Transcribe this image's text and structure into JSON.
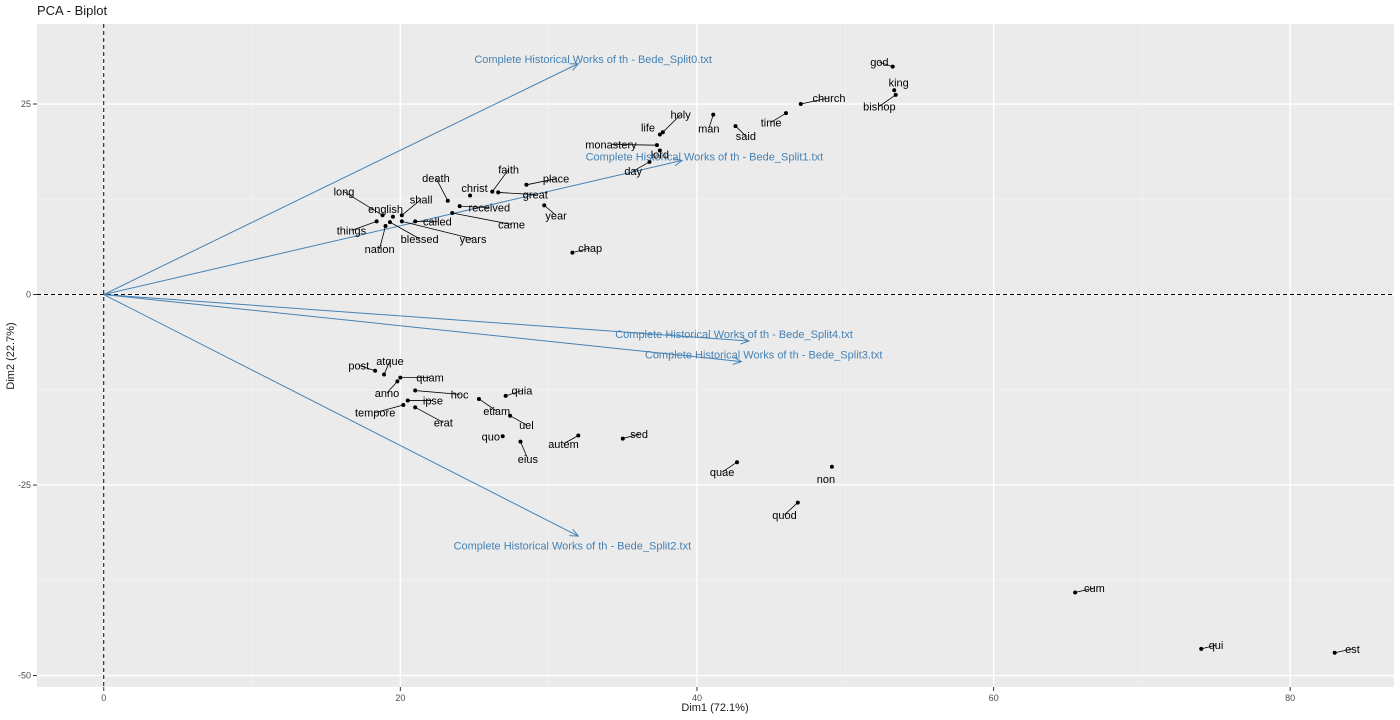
{
  "chart_data": {
    "type": "scatter",
    "subtype": "pca-biplot",
    "title": "PCA - Biplot",
    "xlabel": "Dim1 (72.1%)",
    "ylabel": "Dim2 (22.7%)",
    "xlim": [
      -4.5,
      87
    ],
    "ylim": [
      -51.5,
      35.5
    ],
    "xticks": [
      0,
      20,
      40,
      60,
      80
    ],
    "yticks": [
      -50,
      -25,
      0,
      25
    ],
    "grid": true,
    "reference_lines": {
      "x": 0,
      "y": 0
    },
    "colors": {
      "panel": "#ebebeb",
      "grid_major": "#ffffff",
      "grid_minor": "#f3f3f3",
      "vector": "#4682b4",
      "point": "#000000",
      "refline": "#000000"
    },
    "points": [
      {
        "label": "god",
        "x": 53.2,
        "y": 29.9,
        "lx": 52.3,
        "ly": 30.5
      },
      {
        "label": "king",
        "x": 53.3,
        "y": 26.8,
        "lx": 53.6,
        "ly": 27.8
      },
      {
        "label": "bishop",
        "x": 53.4,
        "y": 26.2,
        "lx": 52.3,
        "ly": 24.7
      },
      {
        "label": "church",
        "x": 47.0,
        "y": 25.0,
        "lx": 48.9,
        "ly": 25.8
      },
      {
        "label": "time",
        "x": 46.0,
        "y": 23.8,
        "lx": 45.0,
        "ly": 22.6
      },
      {
        "label": "man",
        "x": 41.1,
        "y": 23.6,
        "lx": 40.8,
        "ly": 21.8
      },
      {
        "label": "said",
        "x": 42.6,
        "y": 22.1,
        "lx": 43.3,
        "ly": 20.8
      },
      {
        "label": "holy",
        "x": 37.7,
        "y": 21.3,
        "lx": 38.9,
        "ly": 23.6
      },
      {
        "label": "life",
        "x": 37.5,
        "y": 21.0,
        "lx": 36.7,
        "ly": 21.9
      },
      {
        "label": "monastery",
        "x": 37.3,
        "y": 19.6,
        "lx": 34.2,
        "ly": 19.7
      },
      {
        "label": "lord",
        "x": 37.5,
        "y": 18.9,
        "lx": 37.5,
        "ly": 18.4
      },
      {
        "label": "day",
        "x": 36.8,
        "y": 17.4,
        "lx": 35.7,
        "ly": 16.2
      },
      {
        "label": "faith",
        "x": 26.2,
        "y": 13.5,
        "lx": 27.3,
        "ly": 16.4
      },
      {
        "label": "place",
        "x": 28.5,
        "y": 14.4,
        "lx": 30.5,
        "ly": 15.2
      },
      {
        "label": "christ",
        "x": 24.7,
        "y": 13.0,
        "lx": 25.0,
        "ly": 14.0
      },
      {
        "label": "great",
        "x": 26.6,
        "y": 13.4,
        "lx": 29.1,
        "ly": 13.1
      },
      {
        "label": "death",
        "x": 23.2,
        "y": 12.3,
        "lx": 22.4,
        "ly": 15.3
      },
      {
        "label": "year",
        "x": 29.7,
        "y": 11.7,
        "lx": 30.5,
        "ly": 10.4
      },
      {
        "label": "received",
        "x": 24.0,
        "y": 11.6,
        "lx": 26.0,
        "ly": 11.4
      },
      {
        "label": "long",
        "x": 18.8,
        "y": 10.4,
        "lx": 16.2,
        "ly": 13.5
      },
      {
        "label": "english",
        "x": 19.5,
        "y": 10.2,
        "lx": 19.0,
        "ly": 11.2
      },
      {
        "label": "shall",
        "x": 20.1,
        "y": 10.4,
        "lx": 21.4,
        "ly": 12.5
      },
      {
        "label": "called",
        "x": 21.0,
        "y": 9.6,
        "lx": 22.5,
        "ly": 9.6
      },
      {
        "label": "came",
        "x": 23.5,
        "y": 10.7,
        "lx": 27.5,
        "ly": 9.2
      },
      {
        "label": "things",
        "x": 18.4,
        "y": 9.6,
        "lx": 16.7,
        "ly": 8.4
      },
      {
        "label": "blessed",
        "x": 19.3,
        "y": 9.5,
        "lx": 21.3,
        "ly": 7.3
      },
      {
        "label": "years",
        "x": 20.1,
        "y": 9.6,
        "lx": 24.9,
        "ly": 7.3
      },
      {
        "label": "nation",
        "x": 19.0,
        "y": 9.0,
        "lx": 18.6,
        "ly": 6.0
      },
      {
        "label": "chap",
        "x": 31.6,
        "y": 5.5,
        "lx": 32.8,
        "ly": 6.1
      },
      {
        "label": "post",
        "x": 18.3,
        "y": -10.0,
        "lx": 17.2,
        "ly": -9.3
      },
      {
        "label": "atque",
        "x": 18.9,
        "y": -10.5,
        "lx": 19.3,
        "ly": -8.7
      },
      {
        "label": "quam",
        "x": 20.0,
        "y": -10.9,
        "lx": 22.0,
        "ly": -10.9
      },
      {
        "label": "anno",
        "x": 19.8,
        "y": -11.4,
        "lx": 19.1,
        "ly": -12.9
      },
      {
        "label": "hoc",
        "x": 21.0,
        "y": -12.6,
        "lx": 24.0,
        "ly": -13.1
      },
      {
        "label": "quia",
        "x": 27.1,
        "y": -13.3,
        "lx": 28.2,
        "ly": -12.6
      },
      {
        "label": "ipse",
        "x": 20.5,
        "y": -13.9,
        "lx": 22.2,
        "ly": -13.9
      },
      {
        "label": "etiam",
        "x": 25.3,
        "y": -13.7,
        "lx": 26.5,
        "ly": -15.3
      },
      {
        "label": "tempore",
        "x": 20.2,
        "y": -14.5,
        "lx": 18.3,
        "ly": -15.5
      },
      {
        "label": "erat",
        "x": 21.0,
        "y": -14.8,
        "lx": 22.9,
        "ly": -16.8
      },
      {
        "label": "uel",
        "x": 27.4,
        "y": -15.9,
        "lx": 28.5,
        "ly": -17.1
      },
      {
        "label": "autem",
        "x": 32.0,
        "y": -18.5,
        "lx": 31.0,
        "ly": -19.6
      },
      {
        "label": "quo",
        "x": 26.9,
        "y": -18.6,
        "lx": 26.1,
        "ly": -18.6
      },
      {
        "label": "sed",
        "x": 35.0,
        "y": -18.9,
        "lx": 36.1,
        "ly": -18.3
      },
      {
        "label": "eius",
        "x": 28.1,
        "y": -19.3,
        "lx": 28.6,
        "ly": -21.6
      },
      {
        "label": "quae",
        "x": 42.7,
        "y": -22.0,
        "lx": 41.7,
        "ly": -23.3
      },
      {
        "label": "non",
        "x": 49.1,
        "y": -22.6,
        "lx": 48.7,
        "ly": -24.2
      },
      {
        "label": "quod",
        "x": 46.8,
        "y": -27.3,
        "lx": 45.9,
        "ly": -28.9
      },
      {
        "label": "cum",
        "x": 65.5,
        "y": -39.1,
        "lx": 66.8,
        "ly": -38.5
      },
      {
        "label": "qui",
        "x": 74.0,
        "y": -46.5,
        "lx": 75.0,
        "ly": -46.0
      },
      {
        "label": "est",
        "x": 83.0,
        "y": -47.0,
        "lx": 84.2,
        "ly": -46.5
      }
    ],
    "vectors": [
      {
        "name": "Complete Historical Works of th - Bede_Split0.txt",
        "x": 32.0,
        "y": 30.3,
        "lx": 33.0,
        "ly": 30.9
      },
      {
        "name": "Complete Historical Works of th - Bede_Split1.txt",
        "x": 39.0,
        "y": 17.6,
        "lx": 40.5,
        "ly": 18.1
      },
      {
        "name": "Complete Historical Works of th - Bede_Split4.txt",
        "x": 43.5,
        "y": -6.1,
        "lx": 42.5,
        "ly": -5.2
      },
      {
        "name": "Complete Historical Works of th - Bede_Split3.txt",
        "x": 43.0,
        "y": -8.8,
        "lx": 44.5,
        "ly": -7.9
      },
      {
        "name": "Complete Historical Works of th - Bede_Split2.txt",
        "x": 32.0,
        "y": -31.7,
        "lx": 31.6,
        "ly": -32.9
      }
    ]
  }
}
